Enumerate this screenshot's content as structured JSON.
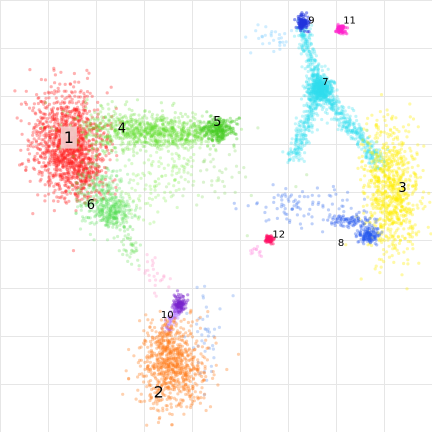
{
  "chart_data": {
    "type": "scatter",
    "xlim": [
      0,
      100
    ],
    "ylim": [
      0,
      100
    ],
    "grid": true,
    "legend": "none",
    "labels_text": [
      "1",
      "2",
      "3",
      "4",
      "5",
      "6",
      "7",
      "8",
      "9",
      "10",
      "11",
      "12"
    ],
    "clusters": [
      {
        "label": "1",
        "color": "#ff2020",
        "alpha": 0.35,
        "n": 1400,
        "blobs": [
          {
            "cx": 14.8,
            "cy": 67.6,
            "sx": 4.2,
            "sy": 6.0,
            "w": 0.75
          },
          {
            "cx": 18.0,
            "cy": 62.0,
            "sx": 2.8,
            "sy": 4.2,
            "w": 0.25
          }
        ],
        "label_pos": [
          15.3,
          68.5
        ],
        "label_size": "large",
        "label_box": true
      },
      {
        "label": "2",
        "color": "#ff7a1a",
        "alpha": 0.35,
        "n": 800,
        "blobs": [
          {
            "cx": 40.0,
            "cy": 13.5,
            "sx": 4.0,
            "sy": 4.8,
            "w": 0.8
          },
          {
            "cx": 38.5,
            "cy": 20.5,
            "sx": 2.2,
            "sy": 2.8,
            "w": 0.2
          }
        ],
        "label_pos": [
          36.5,
          8.5
        ],
        "label_size": "large",
        "label_box": false
      },
      {
        "label": "3",
        "color": "#ffee00",
        "alpha": 0.35,
        "n": 800,
        "blobs": [
          {
            "cx": 91.5,
            "cy": 56.0,
            "sx": 3.2,
            "sy": 7.5,
            "w": 1.0
          }
        ],
        "label_pos": [
          94.0,
          56.5
        ],
        "label_size": "medium",
        "label_box": false
      },
      {
        "label": "4",
        "color": "#66dd33",
        "alpha": 0.28,
        "n": 900,
        "blobs": [
          {
            "cx": 27.5,
            "cy": 70.5,
            "sx": 6.5,
            "sy": 2.5,
            "w": 0.5
          },
          {
            "cx": 40.0,
            "cy": 69.5,
            "sx": 6.0,
            "sy": 1.6,
            "w": 0.5
          }
        ],
        "label_pos": [
          27.8,
          70.5
        ],
        "label_size": "medium",
        "label_box": false
      },
      {
        "label": "5",
        "color": "#44cc22",
        "alpha": 0.35,
        "n": 250,
        "blobs": [
          {
            "cx": 50.5,
            "cy": 70.5,
            "sx": 2.0,
            "sy": 1.3,
            "w": 1.0
          }
        ],
        "label_pos": [
          50.3,
          72.0
        ],
        "label_size": "medium",
        "label_box": false
      },
      {
        "label": "6",
        "color": "#55dd55",
        "alpha": 0.28,
        "n": 450,
        "blobs": [
          {
            "cx": 22.5,
            "cy": 55.0,
            "sx": 2.8,
            "sy": 4.0,
            "w": 0.6
          },
          {
            "cx": 26.0,
            "cy": 51.0,
            "sx": 2.0,
            "sy": 1.8,
            "w": 0.4
          }
        ],
        "label_pos": [
          20.5,
          52.5
        ],
        "label_size": "medium",
        "label_box": false
      },
      {
        "label": "7",
        "color": "#33ddee",
        "alpha": 0.3,
        "n": 500,
        "blobs": [
          {
            "cx": 74.5,
            "cy": 80.0,
            "sx": 1.4,
            "sy": 1.4,
            "w": 1.0
          }
        ],
        "label_pos": [
          75.8,
          81.5
        ],
        "label_size": "small",
        "label_box": false
      },
      {
        "label": "8",
        "color": "#2255ee",
        "alpha": 0.35,
        "n": 220,
        "blobs": [
          {
            "cx": 86.0,
            "cy": 45.5,
            "sx": 1.3,
            "sy": 1.0,
            "w": 0.6
          },
          {
            "cx": 82.0,
            "cy": 49.0,
            "sx": 2.6,
            "sy": 0.8,
            "w": 0.4
          }
        ],
        "label_pos": [
          79.5,
          43.5
        ],
        "label_size": "small",
        "label_box": false
      },
      {
        "label": "9",
        "color": "#2233dd",
        "alpha": 0.5,
        "n": 110,
        "blobs": [
          {
            "cx": 70.5,
            "cy": 95.5,
            "sx": 0.7,
            "sy": 0.9,
            "w": 1.0
          }
        ],
        "label_pos": [
          72.5,
          96.0
        ],
        "label_size": "small",
        "label_box": false
      },
      {
        "label": "10",
        "color": "#7722cc",
        "alpha": 0.45,
        "n": 90,
        "blobs": [
          {
            "cx": 41.5,
            "cy": 29.5,
            "sx": 0.8,
            "sy": 1.0,
            "w": 1.0
          }
        ],
        "label_pos": [
          38.5,
          26.5
        ],
        "label_size": "small",
        "label_box": false
      },
      {
        "label": "11",
        "color": "#ff22cc",
        "alpha": 0.5,
        "n": 70,
        "blobs": [
          {
            "cx": 79.5,
            "cy": 94.0,
            "sx": 0.5,
            "sy": 0.5,
            "w": 1.0
          }
        ],
        "label_pos": [
          81.5,
          96.0
        ],
        "label_size": "small",
        "label_box": false
      },
      {
        "label": "12",
        "color": "#ff1166",
        "alpha": 0.5,
        "n": 60,
        "blobs": [
          {
            "cx": 62.5,
            "cy": 44.5,
            "sx": 0.5,
            "sy": 0.5,
            "w": 1.0
          }
        ],
        "label_pos": [
          64.8,
          45.5
        ],
        "label_size": "small",
        "label_box": false
      }
    ],
    "paths": [
      {
        "cluster": "7",
        "color": "#33ddee",
        "n": 220,
        "from": [
          74.5,
          80.0
        ],
        "to": [
          70.2,
          94.5
        ],
        "spread": 0.8
      },
      {
        "cluster": "7",
        "color": "#33ddee",
        "n": 260,
        "from": [
          74.5,
          80.0
        ],
        "to": [
          68.0,
          63.0
        ],
        "spread": 1.0
      },
      {
        "cluster": "7",
        "color": "#33ddee",
        "n": 380,
        "from": [
          74.5,
          80.0
        ],
        "to": [
          89.0,
          62.0
        ],
        "spread": 1.0
      },
      {
        "cluster": "4",
        "color": "#88ee55",
        "n": 160,
        "from": [
          44.0,
          68.0
        ],
        "to": [
          30.0,
          52.0
        ],
        "spread": 3.5
      },
      {
        "cluster": "6",
        "color": "#66dd55",
        "n": 60,
        "from": [
          26.0,
          50.0
        ],
        "to": [
          31.0,
          40.0
        ],
        "spread": 1.2
      },
      {
        "cluster": "10",
        "color": "#aa66ff",
        "n": 80,
        "from": [
          41.5,
          29.5
        ],
        "to": [
          38.5,
          23.0
        ],
        "spread": 0.6
      }
    ],
    "scatter_noise": [
      {
        "color": "#4477ee",
        "n": 90,
        "cx": 70.5,
        "cy": 52.0,
        "sx": 6.5,
        "sy": 2.5
      },
      {
        "color": "#6699ee",
        "n": 40,
        "cx": 47.0,
        "cy": 21.0,
        "sx": 2.5,
        "sy": 5.0
      },
      {
        "color": "#ff99cc",
        "n": 25,
        "cx": 36.0,
        "cy": 36.0,
        "sx": 1.8,
        "sy": 3.0
      },
      {
        "color": "#99dd77",
        "n": 50,
        "cx": 48.0,
        "cy": 60.0,
        "sx": 7.0,
        "sy": 4.0
      },
      {
        "color": "#77ccff",
        "n": 30,
        "cx": 64.0,
        "cy": 92.0,
        "sx": 3.0,
        "sy": 1.5
      },
      {
        "color": "#ff88dd",
        "n": 12,
        "cx": 60.0,
        "cy": 42.0,
        "sx": 1.0,
        "sy": 0.8
      }
    ]
  }
}
